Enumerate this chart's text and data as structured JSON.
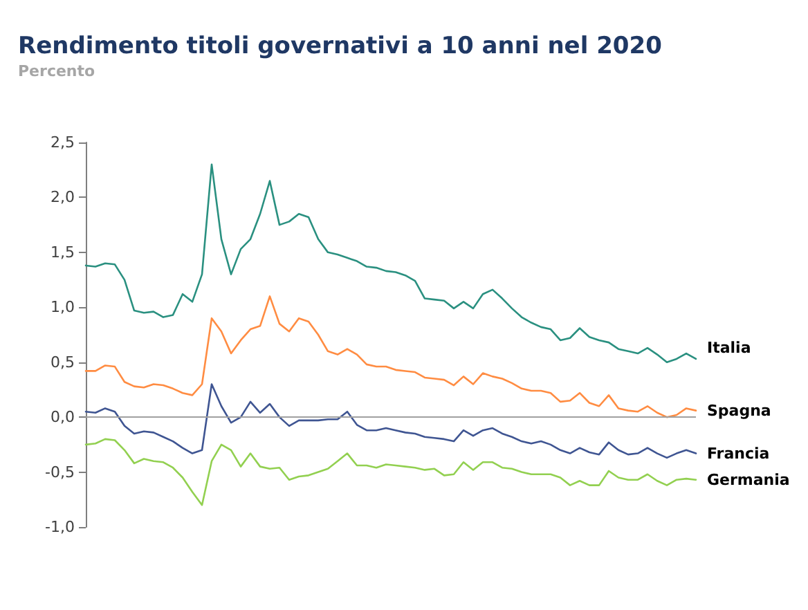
{
  "chart_data": {
    "type": "line",
    "title": "Rendimento titoli governativi a 10 anni nel 2020",
    "subtitle": "Percento",
    "categories": [
      null,
      null,
      null,
      null,
      null,
      null,
      null,
      null,
      null,
      null,
      null,
      null,
      null,
      null,
      null,
      null,
      null,
      null,
      null,
      null,
      null,
      null,
      null,
      null,
      null,
      null,
      null,
      null,
      null,
      null,
      null,
      null,
      null,
      null,
      null,
      null,
      null,
      null,
      null,
      null,
      null,
      null,
      null,
      null,
      null,
      null,
      null,
      null,
      null,
      null,
      null,
      null,
      null,
      null,
      null,
      null,
      null,
      null,
      null,
      null,
      null,
      null,
      null,
      null
    ],
    "series": [
      {
        "name": "Italia",
        "color": "#2a9080",
        "values": [
          1.38,
          1.37,
          1.4,
          1.39,
          1.25,
          0.97,
          0.95,
          0.96,
          0.91,
          0.93,
          1.12,
          1.05,
          1.3,
          2.3,
          1.62,
          1.3,
          1.53,
          1.62,
          1.85,
          2.15,
          1.75,
          1.78,
          1.85,
          1.82,
          1.62,
          1.5,
          1.48,
          1.45,
          1.42,
          1.37,
          1.36,
          1.33,
          1.32,
          1.29,
          1.24,
          1.08,
          1.07,
          1.06,
          0.99,
          1.05,
          0.99,
          1.12,
          1.16,
          1.08,
          0.99,
          0.91,
          0.86,
          0.82,
          0.8,
          0.7,
          0.72,
          0.81,
          0.73,
          0.7,
          0.68,
          0.62,
          0.6,
          0.58,
          0.63,
          0.57,
          0.5,
          0.53,
          0.58,
          0.53
        ]
      },
      {
        "name": "Spagna",
        "color": "#ff8c42",
        "values": [
          0.42,
          0.42,
          0.47,
          0.46,
          0.32,
          0.28,
          0.27,
          0.3,
          0.29,
          0.26,
          0.22,
          0.2,
          0.3,
          0.9,
          0.78,
          0.58,
          0.7,
          0.8,
          0.83,
          1.1,
          0.85,
          0.78,
          0.9,
          0.87,
          0.75,
          0.6,
          0.57,
          0.62,
          0.57,
          0.48,
          0.46,
          0.46,
          0.43,
          0.42,
          0.41,
          0.36,
          0.35,
          0.34,
          0.29,
          0.37,
          0.3,
          0.4,
          0.37,
          0.35,
          0.31,
          0.26,
          0.24,
          0.24,
          0.22,
          0.14,
          0.15,
          0.22,
          0.13,
          0.1,
          0.2,
          0.08,
          0.06,
          0.05,
          0.1,
          0.04,
          0.0,
          0.02,
          0.08,
          0.06
        ]
      },
      {
        "name": "Francia",
        "color": "#3f5592",
        "values": [
          0.05,
          0.04,
          0.08,
          0.05,
          -0.08,
          -0.15,
          -0.13,
          -0.14,
          -0.18,
          -0.22,
          -0.28,
          -0.33,
          -0.3,
          0.3,
          0.1,
          -0.05,
          0.0,
          0.14,
          0.04,
          0.12,
          0.0,
          -0.08,
          -0.03,
          -0.03,
          -0.03,
          -0.02,
          -0.02,
          0.05,
          -0.07,
          -0.12,
          -0.12,
          -0.1,
          -0.12,
          -0.14,
          -0.15,
          -0.18,
          -0.19,
          -0.2,
          -0.22,
          -0.12,
          -0.17,
          -0.12,
          -0.1,
          -0.15,
          -0.18,
          -0.22,
          -0.24,
          -0.22,
          -0.25,
          -0.3,
          -0.33,
          -0.28,
          -0.32,
          -0.34,
          -0.23,
          -0.3,
          -0.34,
          -0.33,
          -0.28,
          -0.33,
          -0.37,
          -0.33,
          -0.3,
          -0.33
        ]
      },
      {
        "name": "Germania",
        "color": "#92d050",
        "values": [
          -0.25,
          -0.24,
          -0.2,
          -0.21,
          -0.3,
          -0.42,
          -0.38,
          -0.4,
          -0.41,
          -0.46,
          -0.55,
          -0.68,
          -0.8,
          -0.4,
          -0.25,
          -0.3,
          -0.45,
          -0.33,
          -0.45,
          -0.47,
          -0.46,
          -0.57,
          -0.54,
          -0.53,
          -0.5,
          -0.47,
          -0.4,
          -0.33,
          -0.44,
          -0.44,
          -0.46,
          -0.43,
          -0.44,
          -0.45,
          -0.46,
          -0.48,
          -0.47,
          -0.53,
          -0.52,
          -0.41,
          -0.48,
          -0.41,
          -0.41,
          -0.46,
          -0.47,
          -0.5,
          -0.52,
          -0.52,
          -0.52,
          -0.55,
          -0.62,
          -0.58,
          -0.62,
          -0.62,
          -0.49,
          -0.55,
          -0.57,
          -0.57,
          -0.52,
          -0.58,
          -0.62,
          -0.57,
          -0.56,
          -0.57
        ]
      }
    ],
    "ylim": [
      -1.0,
      2.5
    ],
    "yticks": [
      {
        "value": -1.0,
        "label": "-1,0"
      },
      {
        "value": -0.5,
        "label": "-0,5"
      },
      {
        "value": 0.0,
        "label": "0,0"
      },
      {
        "value": 0.5,
        "label": "0,5"
      },
      {
        "value": 1.0,
        "label": "1,0"
      },
      {
        "value": 1.5,
        "label": "1,5"
      },
      {
        "value": 2.0,
        "label": "2,0"
      },
      {
        "value": 2.5,
        "label": "2,5"
      }
    ],
    "ref_lines": [
      {
        "axis": "y",
        "value": 0,
        "color": "#a0a0a0"
      }
    ],
    "grid": false,
    "legend": false,
    "line_style": "solid",
    "tick_labels": "y"
  }
}
